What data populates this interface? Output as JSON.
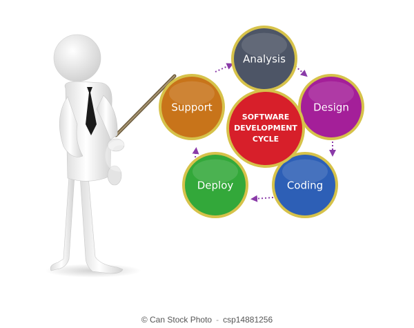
{
  "diagram": {
    "center": {
      "lines": [
        "SOFTWARE",
        "DEVELOPMENT",
        "CYCLE"
      ],
      "color": "#d71f2a"
    },
    "nodes": [
      {
        "id": "analysis",
        "label": "Analysis",
        "color": "#4d5566"
      },
      {
        "id": "design",
        "label": "Design",
        "color": "#a41f99"
      },
      {
        "id": "coding",
        "label": "Coding",
        "color": "#2d5fb6"
      },
      {
        "id": "deploy",
        "label": "Deploy",
        "color": "#33a83a"
      },
      {
        "id": "support",
        "label": "Support",
        "color": "#c8741a"
      }
    ],
    "ring_color": "#d6c24a",
    "arrow_color": "#8a3aa8"
  },
  "watermark": "CanStock",
  "footer": {
    "brand": "© Can Stock Photo",
    "id": "csp14881256"
  }
}
